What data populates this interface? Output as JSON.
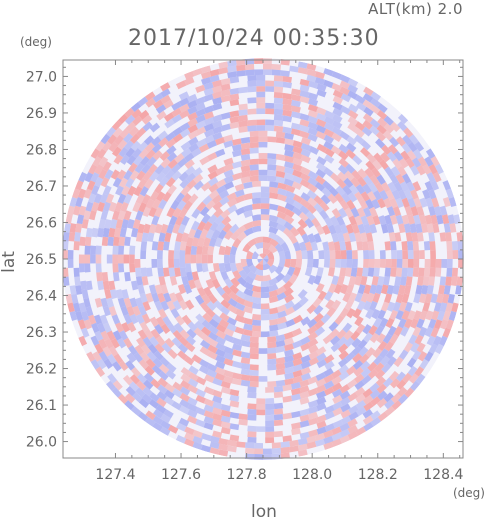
{
  "header": {
    "altitude_label": "ALT(km) 2.0",
    "timestamp": "2017/10/24 00:35:30"
  },
  "chart_data": {
    "type": "heatmap",
    "description_of_field": "Doppler velocity PPI-style scan, red positive / blue negative",
    "xlabel": "lon",
    "ylabel": "lat",
    "x_unit": "(deg)",
    "y_unit": "(deg)",
    "xlim": [
      127.24,
      128.46
    ],
    "ylim": [
      25.955,
      27.045
    ],
    "x_ticks": [
      "127.4",
      "127.6",
      "127.8",
      "128.0",
      "128.2",
      "128.4"
    ],
    "x_tick_values": [
      127.4,
      127.6,
      127.8,
      128.0,
      128.2,
      128.4
    ],
    "y_ticks": [
      "27.0",
      "26.9",
      "26.8",
      "26.7",
      "26.6",
      "26.5",
      "26.4",
      "26.3",
      "26.2",
      "26.1",
      "26.0"
    ],
    "y_tick_values": [
      27.0,
      26.9,
      26.8,
      26.7,
      26.6,
      26.5,
      26.4,
      26.3,
      26.2,
      26.1,
      26.0
    ],
    "center": {
      "lon": 127.85,
      "lat": 26.5
    },
    "radius_deg_lat": 0.55,
    "colors": {
      "positive": "#f4a6a8",
      "negative": "#aab0f2",
      "neutral": "#f2f2fb",
      "frame": "#888888"
    }
  }
}
